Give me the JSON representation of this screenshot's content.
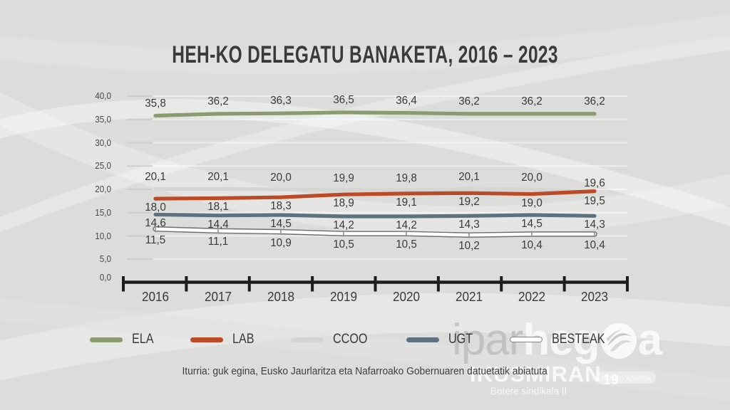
{
  "title": "HEH-KO DELEGATU BANAKETA, 2016 – 2023",
  "source_note": "Iturria: guk egina, Eusko Jaurlaritza eta Nafarroako Gobernuaren datuetatik abiatuta",
  "watermark": {
    "brand_light": "ipar",
    "brand_bold_pre": "heg",
    "brand_bold_post": "a",
    "globe_icon": "globe-icon",
    "series_title": "IKUSMIRAN",
    "series_number": "19",
    "series_subtitle": "Botere sindikala II",
    "date_text": "2024KO AZAROA"
  },
  "chart_data": {
    "type": "line",
    "title": "HEH-KO DELEGATU BANAKETA, 2016 – 2023",
    "categories": [
      "2016",
      "2017",
      "2018",
      "2019",
      "2020",
      "2021",
      "2022",
      "2023"
    ],
    "ylim": [
      0,
      40
    ],
    "y_tick_step": 5,
    "y_tick_labels": [
      "40,0",
      "35,0",
      "30,0",
      "25,0",
      "20,0",
      "15,0",
      "10,0",
      "5,0",
      "0,0"
    ],
    "grid": "horizontal-faint",
    "legend_position": "bottom",
    "decimal_style": "comma",
    "series": [
      {
        "name": "ELA",
        "color": "#8C9A70",
        "label_side": "above",
        "values": [
          35.8,
          36.2,
          36.3,
          36.5,
          36.4,
          36.2,
          36.2,
          36.2
        ]
      },
      {
        "name": "LAB",
        "color": "#BC4A26",
        "label_side": "below",
        "label_side_overrides": {
          "7": "above"
        },
        "values": [
          18.0,
          18.1,
          18.3,
          18.9,
          19.1,
          19.2,
          19.0,
          19.6
        ]
      },
      {
        "name": "CCOO",
        "color": "#D5D5D3",
        "label_side": "above",
        "label_side_overrides": {
          "7": "below"
        },
        "values": [
          20.1,
          20.1,
          20.0,
          19.9,
          19.8,
          20.1,
          20.0,
          19.5
        ]
      },
      {
        "name": "UGT",
        "color": "#5D7181",
        "label_side": "below",
        "values": [
          14.6,
          14.4,
          14.5,
          14.2,
          14.2,
          14.3,
          14.5,
          14.3
        ]
      },
      {
        "name": "BESTEAK",
        "color": "#FFFFFF",
        "outline_color": "#6F6F6C",
        "marker": "tick",
        "label_side": "below",
        "values": [
          11.5,
          11.1,
          10.9,
          10.5,
          10.5,
          10.2,
          10.4,
          10.4
        ]
      }
    ]
  }
}
